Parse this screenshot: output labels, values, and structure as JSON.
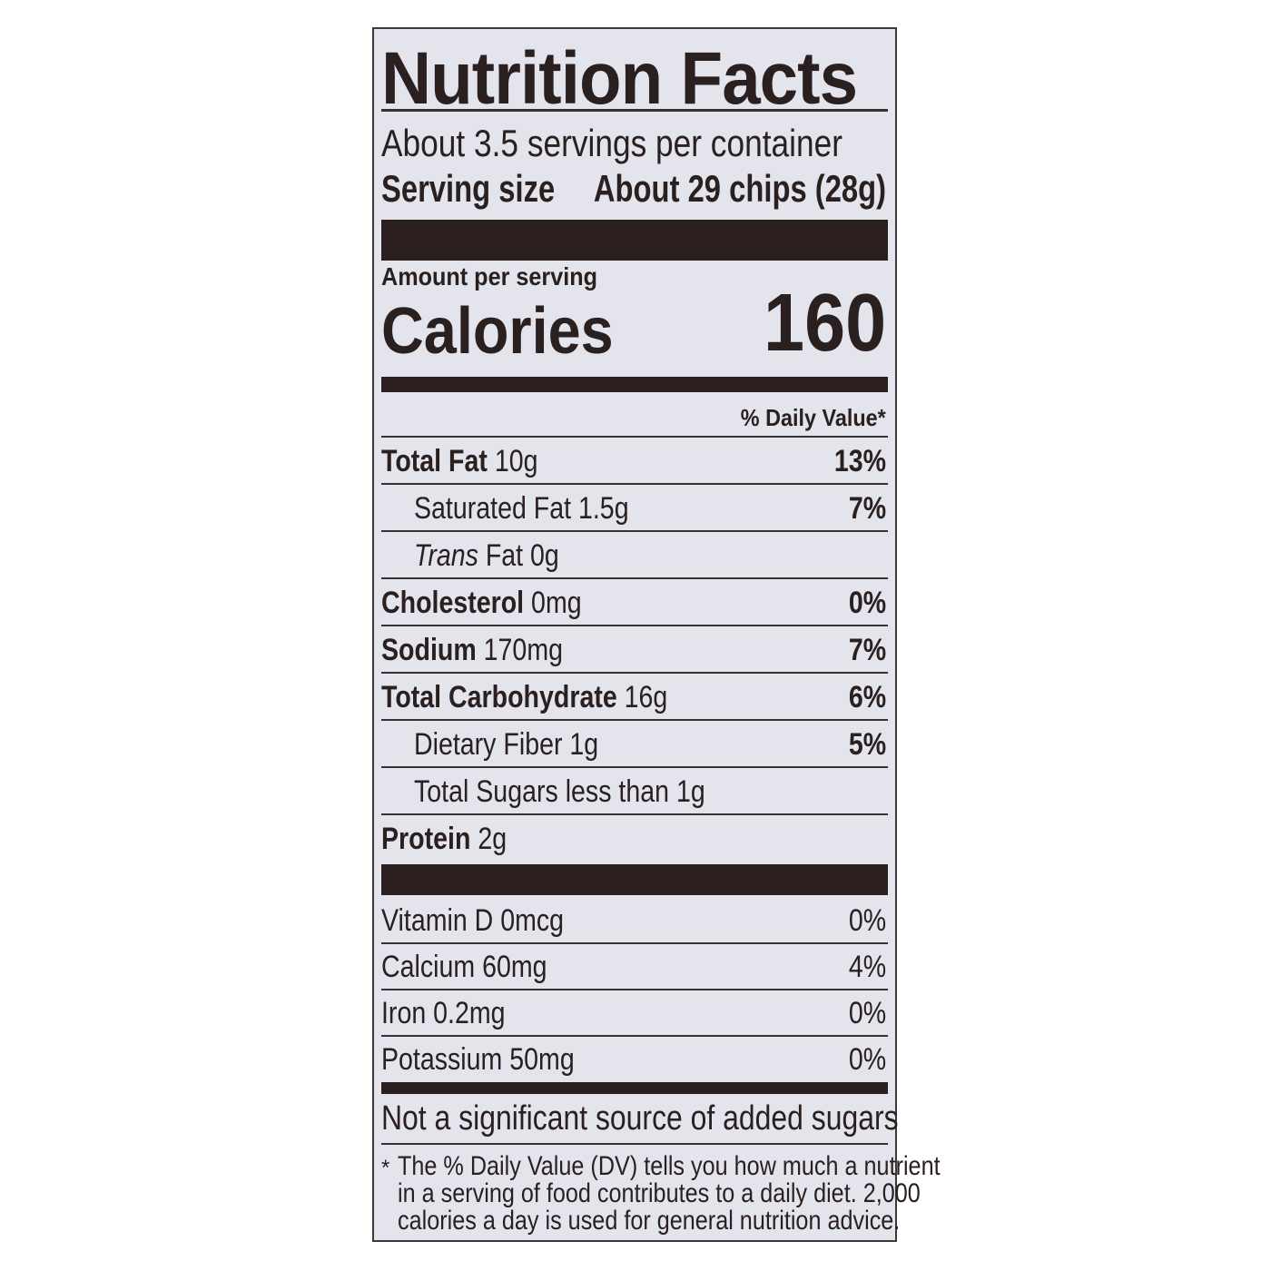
{
  "title": "Nutrition Facts",
  "servings_per_container": "About 3.5 servings per container",
  "serving_size_label": "Serving size",
  "serving_size_value": "About 29 chips (28g)",
  "amount_per_serving": "Amount per serving",
  "calories_label": "Calories",
  "calories_value": "160",
  "daily_value_header": "% Daily Value*",
  "nutrients": [
    {
      "name": "Total Fat",
      "amount": "10g",
      "dv": "13%"
    },
    {
      "name": "Saturated Fat",
      "amount": "1.5g",
      "dv": "7%"
    },
    {
      "name": "Trans",
      "name_suffix": "Fat",
      "amount": "0g",
      "dv": ""
    },
    {
      "name": "Cholesterol",
      "amount": "0mg",
      "dv": "0%"
    },
    {
      "name": "Sodium",
      "amount": "170mg",
      "dv": "7%"
    },
    {
      "name": "Total Carbohydrate",
      "amount": "16g",
      "dv": "6%"
    },
    {
      "name": "Dietary Fiber",
      "amount": "1g",
      "dv": "5%"
    },
    {
      "name": "Total Sugars",
      "amount": "less than 1g",
      "dv": ""
    },
    {
      "name": "Protein",
      "amount": "2g",
      "dv": ""
    }
  ],
  "vitamins": [
    {
      "name": "Vitamin D",
      "amount": "0mcg",
      "dv": "0%"
    },
    {
      "name": "Calcium",
      "amount": "60mg",
      "dv": "4%"
    },
    {
      "name": "Iron",
      "amount": "0.2mg",
      "dv": "0%"
    },
    {
      "name": "Potassium",
      "amount": "50mg",
      "dv": "0%"
    }
  ],
  "added_sugars_note": "Not a significant source of added sugars",
  "footnote": {
    "marker": "*",
    "lines": [
      "The % Daily Value (DV) tells you how much a nutrient",
      "in a serving of food contributes to a daily diet. 2,000",
      "calories a day is used for general nutrition advice."
    ]
  }
}
